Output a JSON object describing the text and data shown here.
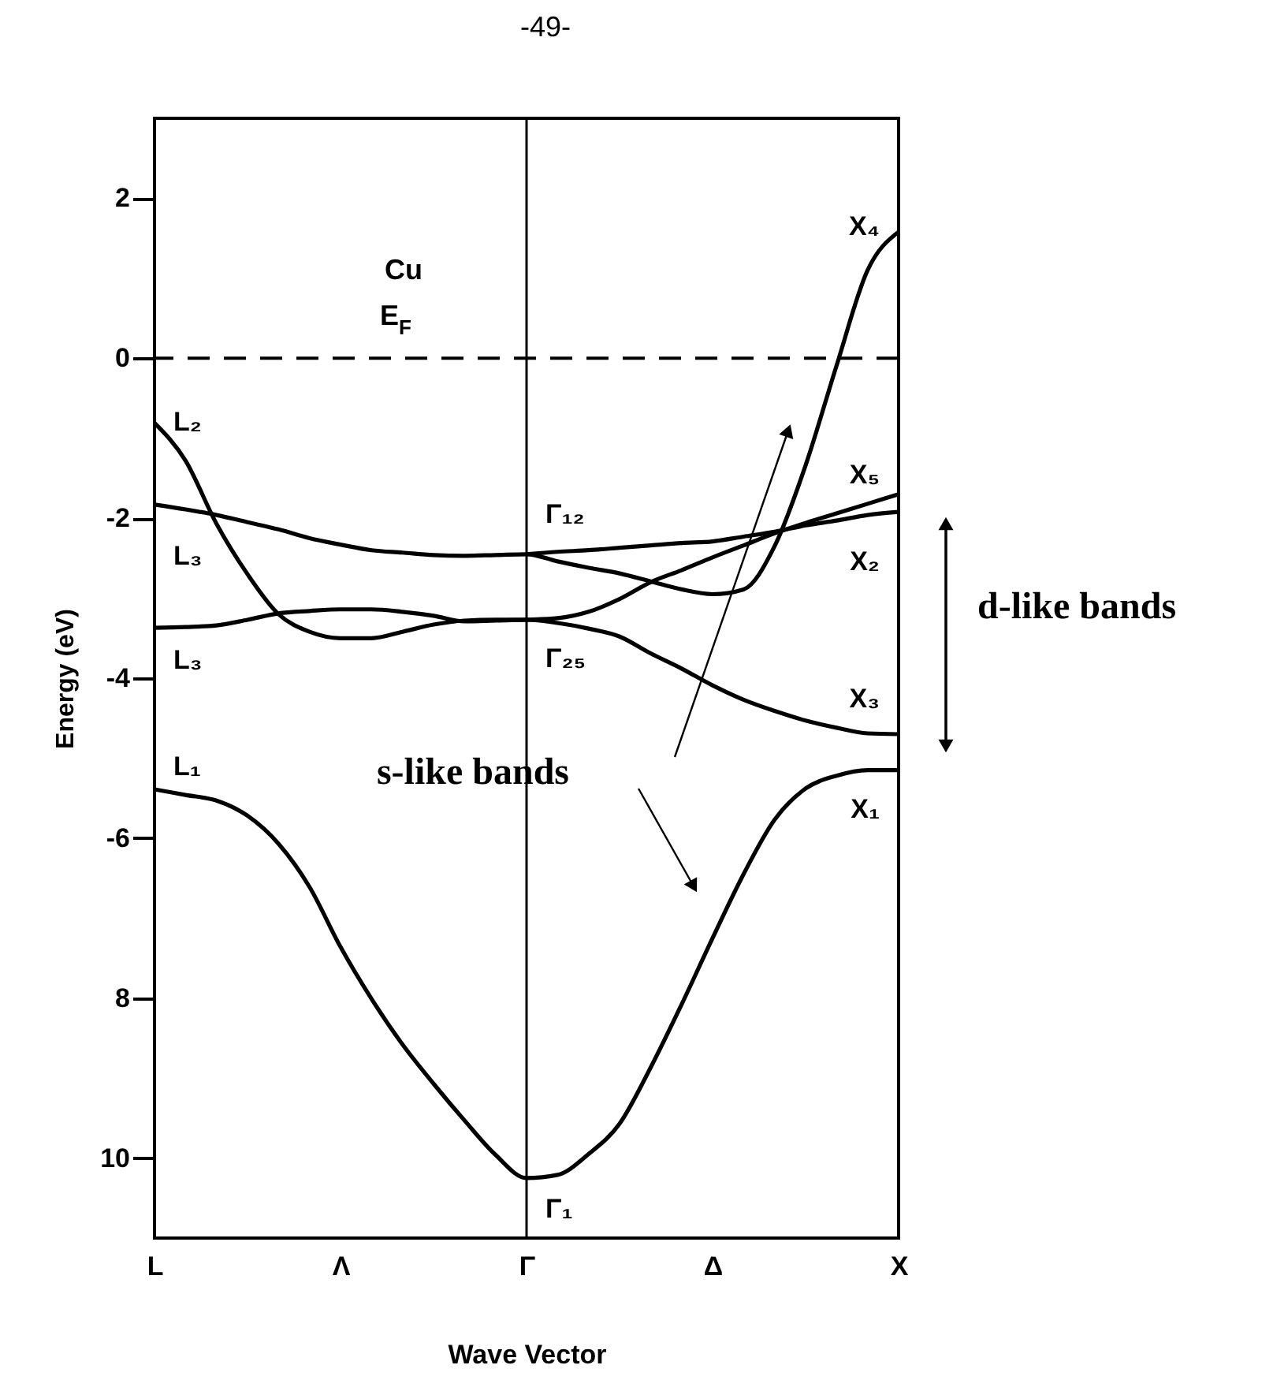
{
  "chart_data": {
    "type": "line",
    "xlabel": "Wave Vector",
    "ylabel": "Energy (eV)",
    "categories": [
      "L",
      null,
      null,
      null,
      null,
      null,
      "Λ",
      null,
      null,
      null,
      null,
      null,
      "Γ",
      null,
      null,
      null,
      null,
      null,
      "Δ",
      null,
      null,
      null,
      null,
      null,
      "X"
    ],
    "ylim": [
      -11,
      3
    ],
    "yticks": [
      2,
      0,
      -2,
      -4,
      -6,
      {
        "value": -8,
        "label": "8"
      },
      {
        "value": -10,
        "label": "10"
      }
    ],
    "grid": false,
    "marker": "none",
    "line_style": "solid",
    "series": [
      {
        "color": "#000000",
        "values": [
          -5.39,
          -5.46,
          -5.53,
          -5.72,
          -6.07,
          -6.61,
          -7.36,
          -8.01,
          -8.58,
          -9.07,
          -9.53,
          -9.96,
          -10.25,
          -10.21,
          -9.95,
          -9.57,
          -8.87,
          -8.08,
          -7.25,
          -6.45,
          -5.77,
          -5.38,
          -5.22,
          -5.15,
          -5.15
        ]
      },
      {
        "color": "#000000",
        "values": [
          -0.81,
          -1.28,
          -2.07,
          -2.7,
          -3.2,
          -3.42,
          -3.5,
          -3.5,
          -3.42,
          -3.33,
          -3.28,
          -3.27,
          -3.27,
          -3.31,
          -3.38,
          -3.48,
          -3.69,
          -3.88,
          -4.09,
          -4.27,
          -4.41,
          -4.53,
          -4.62,
          -4.69,
          -4.7
        ]
      },
      {
        "color": "#000000",
        "values": [
          -3.37,
          -3.36,
          -3.34,
          -3.27,
          -3.19,
          -3.16,
          -3.14,
          -3.14,
          -3.17,
          -3.22,
          -3.29,
          -3.28,
          -3.27,
          -3.25,
          -3.17,
          -3.01,
          -2.8,
          -2.65,
          -2.49,
          -2.34,
          -2.19,
          -2.06,
          -1.94,
          -1.82,
          -1.7
        ]
      },
      {
        "color": "#000000",
        "values": [
          -1.83,
          -1.89,
          -1.96,
          -2.05,
          -2.14,
          -2.25,
          -2.33,
          -2.4,
          -2.43,
          -2.46,
          -2.47,
          -2.46,
          -2.45,
          -2.54,
          -2.62,
          -2.69,
          -2.79,
          -2.89,
          -2.95,
          -2.89,
          -2.35,
          -1.34,
          -0.09,
          1.1,
          1.58
        ]
      },
      {
        "color": "#000000",
        "values": [
          null,
          null,
          null,
          null,
          null,
          null,
          null,
          null,
          null,
          null,
          null,
          null,
          -2.45,
          -2.42,
          -2.4,
          -2.37,
          -2.34,
          -2.31,
          -2.29,
          -2.23,
          -2.17,
          -2.09,
          -2.03,
          -1.96,
          -1.92
        ]
      }
    ],
    "ref_lines": [
      {
        "axis": "y",
        "value": 0,
        "label": "E$_{F}$",
        "color": "#000000",
        "line_style": "dashed"
      },
      {
        "axis": "x",
        "value": "Γ",
        "color": "#000000",
        "line_style": "solid"
      }
    ],
    "annotations": [
      "-49-",
      "Cu",
      "s-like bands",
      "d-like bands",
      {
        "text": "L₂",
        "x": "L",
        "y": -0.81
      },
      {
        "text": "L₃",
        "x": "L",
        "y": -1.83
      },
      {
        "text": "L₃",
        "x": "L",
        "y": -3.37
      },
      {
        "text": "L₁",
        "x": "L",
        "y": -5.39
      },
      {
        "text": "Γ₁₂",
        "x": "Γ",
        "y": -2.45
      },
      {
        "text": "Γ₂₅",
        "x": "Γ",
        "y": -3.27
      },
      {
        "text": "Γ₁",
        "x": "Γ",
        "y": -10.25
      },
      {
        "text": "X₄",
        "x": "X",
        "y": 1.58
      },
      {
        "text": "X₅",
        "x": "X",
        "y": -1.7
      },
      {
        "text": "X₂",
        "x": "X",
        "y": -1.92
      },
      {
        "text": "X₃",
        "x": "X",
        "y": -4.7
      },
      {
        "text": "X₁",
        "x": "X",
        "y": -5.15
      }
    ]
  }
}
